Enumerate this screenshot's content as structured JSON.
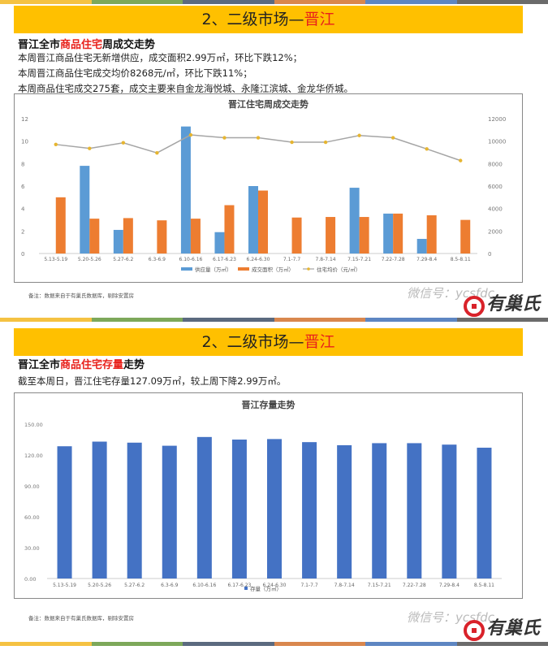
{
  "colors": {
    "banner_bg": "#FFC000",
    "highlight_red": "#E8211B",
    "supply_blue": "#5B9BD5",
    "deal_orange": "#ED7D31",
    "price_line": "#A5A5A5",
    "price_marker": "#E6B530",
    "stock_blue": "#4472C4",
    "strip": [
      "#F5C242",
      "#7DA85A",
      "#5B6A7F",
      "#D9874E",
      "#5E86C2",
      "#6B6B6B"
    ]
  },
  "section1": {
    "banner": {
      "prefix": "2、二级市场—",
      "highlight": "晋江"
    },
    "subhead": {
      "pre": "晋江全市",
      "highlight": "商品住宅",
      "post": "周成交走势"
    },
    "lines": [
      "本周晋江商品住宅无新增供应，成交面积2.99万㎡，环比下跌12%；",
      "本周晋江商品住宅成交均价8268元/㎡，环比下跌11%；",
      "本周商品住宅成交275套，成交主要来自金龙海悦城、永隆江滨城、金龙华侨城。"
    ],
    "note": "备注：数据来自于有巢氏数据库，剔除安置房",
    "watermark_text": "微信号：ycsfdc",
    "brand": "有巢氏"
  },
  "section2": {
    "banner": {
      "prefix": "2、二级市场—",
      "highlight": "晋江"
    },
    "subhead": {
      "pre": "晋江全市",
      "highlight": "商品住宅存量",
      "post": "走势"
    },
    "lines": [
      "截至本周日，晋江住宅存量127.09万㎡，较上周下降2.99万㎡。"
    ],
    "note": "备注：数据来自于有巢氏数据库，剔除安置房",
    "watermark_text": "微信号：ycsfdc",
    "brand": "有巢氏"
  },
  "chart_data": [
    {
      "type": "bar",
      "title": "晋江住宅周成交走势",
      "categories": [
        "5.13-5.19",
        "5.20-5.26",
        "5.27-6.2",
        "6.3-6.9",
        "6.10-6.16",
        "6.17-6.23",
        "6.24-6.30",
        "7.1-7.7",
        "7.8-7.14",
        "7.15-7.21",
        "7.22-7.28",
        "7.29-8.4",
        "8.5-8.11"
      ],
      "series": [
        {
          "name": "供应量（万㎡）",
          "type": "bar",
          "axis": "left",
          "values": [
            0,
            7.8,
            2.1,
            0,
            11.3,
            1.9,
            6.0,
            0,
            0,
            5.85,
            3.55,
            1.3,
            0
          ]
        },
        {
          "name": "成交面积（万㎡）",
          "type": "bar",
          "axis": "left",
          "values": [
            5.0,
            3.1,
            3.15,
            2.95,
            3.1,
            4.3,
            5.6,
            3.2,
            3.25,
            3.25,
            3.55,
            3.4,
            2.99
          ]
        },
        {
          "name": "住宅均价（元/㎡）",
          "type": "line",
          "axis": "right",
          "values": [
            9700,
            9350,
            9850,
            8950,
            10550,
            10300,
            10300,
            9900,
            9900,
            10500,
            10300,
            9300,
            8268
          ]
        }
      ],
      "ylim": [
        0,
        12
      ],
      "yticks": [
        0,
        2,
        4,
        6,
        8,
        10,
        12
      ],
      "y2lim": [
        0,
        12000
      ],
      "y2ticks": [
        0,
        2000,
        4000,
        6000,
        8000,
        10000,
        12000
      ],
      "xlabel": "",
      "ylabel": "",
      "y2label": "",
      "legend_position": "bottom",
      "grid": false
    },
    {
      "type": "bar",
      "title": "晋江存量走势",
      "categories": [
        "5.13-5.19",
        "5.20-5.26",
        "5.27-6.2",
        "6.3-6.9",
        "6.10-6.16",
        "6.17-6.23",
        "6.24-6.30",
        "7.1-7.7",
        "7.8-7.14",
        "7.15-7.21",
        "7.22-7.28",
        "7.29-8.4",
        "8.5-8.11"
      ],
      "series": [
        {
          "name": "存量（万㎡）",
          "values": [
            128.5,
            133.0,
            132.0,
            129.0,
            137.5,
            135.0,
            135.5,
            132.5,
            129.5,
            131.5,
            131.5,
            130.08,
            127.09
          ]
        }
      ],
      "ylim": [
        0,
        150
      ],
      "yticks": [
        "0.00",
        "30.00",
        "60.00",
        "90.00",
        "120.00",
        "150.00"
      ],
      "xlabel": "",
      "ylabel": "",
      "legend_position": "bottom",
      "grid": false
    }
  ]
}
